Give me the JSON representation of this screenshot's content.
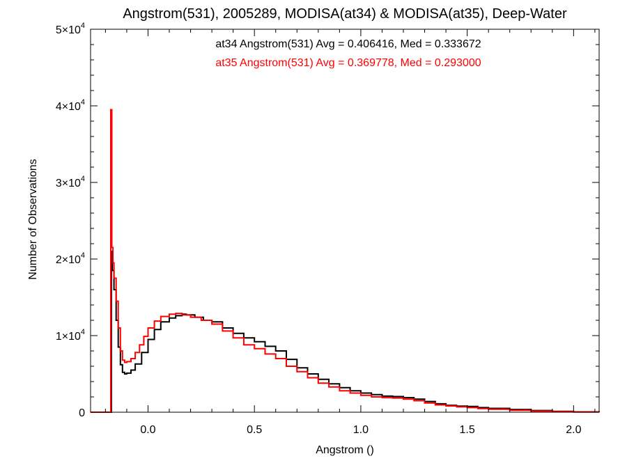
{
  "chart_data": {
    "type": "line",
    "title": "Angstrom(531), 2005289, MODISA(at34) & MODISA(at35), Deep-Water",
    "xlabel": "Angstrom ()",
    "ylabel": "Number of Observations",
    "xlim": [
      -0.27,
      2.12
    ],
    "ylim": [
      0,
      50000
    ],
    "x_ticks": [
      0.0,
      0.5,
      1.0,
      1.5,
      2.0
    ],
    "x_tick_labels": [
      "0.0",
      "0.5",
      "1.0",
      "1.5",
      "2.0"
    ],
    "y_ticks": [
      0,
      10000,
      20000,
      30000,
      40000,
      50000
    ],
    "y_tick_labels": [
      {
        "base": "0",
        "exp": ""
      },
      {
        "base": "1×10",
        "exp": "4"
      },
      {
        "base": "2×10",
        "exp": "4"
      },
      {
        "base": "3×10",
        "exp": "4"
      },
      {
        "base": "4×10",
        "exp": "4"
      },
      {
        "base": "5×10",
        "exp": "4"
      }
    ],
    "grid": false,
    "annotations": [
      {
        "text": "at34 Angstrom(531) Avg = 0.406416, Med = 0.333672",
        "color": "#000000"
      },
      {
        "text": "at35 Angstrom(531) Avg = 0.369778, Med = 0.293000",
        "color": "#ff0000"
      }
    ],
    "series": [
      {
        "color": "#000000",
        "style": "step",
        "x": [
          -0.27,
          -0.18,
          -0.172,
          -0.168,
          -0.16,
          -0.15,
          -0.14,
          -0.13,
          -0.12,
          -0.11,
          -0.1,
          -0.08,
          -0.06,
          -0.03,
          0.0,
          0.03,
          0.06,
          0.1,
          0.13,
          0.16,
          0.18,
          0.22,
          0.26,
          0.3,
          0.35,
          0.4,
          0.45,
          0.5,
          0.55,
          0.6,
          0.65,
          0.7,
          0.75,
          0.8,
          0.85,
          0.9,
          0.95,
          1.0,
          1.05,
          1.1,
          1.15,
          1.2,
          1.25,
          1.3,
          1.35,
          1.4,
          1.45,
          1.5,
          1.55,
          1.6,
          1.7,
          1.8,
          1.9,
          2.0,
          2.12
        ],
        "y": [
          0,
          0,
          21000,
          18500,
          16000,
          12000,
          8500,
          6200,
          5200,
          5000,
          5100,
          5500,
          6300,
          7800,
          9500,
          10800,
          11800,
          12300,
          12600,
          12800,
          12700,
          12400,
          12000,
          11800,
          11000,
          10300,
          9700,
          9200,
          8600,
          8000,
          6900,
          5800,
          5000,
          4300,
          3700,
          3200,
          2800,
          2500,
          2300,
          2100,
          2050,
          1900,
          1700,
          1400,
          1100,
          900,
          800,
          750,
          600,
          500,
          350,
          220,
          120,
          50,
          0
        ]
      },
      {
        "color": "#ff0000",
        "style": "step",
        "x": [
          -0.27,
          -0.18,
          -0.175,
          -0.17,
          -0.165,
          -0.16,
          -0.15,
          -0.14,
          -0.13,
          -0.12,
          -0.11,
          -0.1,
          -0.08,
          -0.06,
          -0.04,
          -0.02,
          0.0,
          0.03,
          0.06,
          0.1,
          0.13,
          0.16,
          0.2,
          0.25,
          0.3,
          0.35,
          0.4,
          0.45,
          0.5,
          0.55,
          0.6,
          0.65,
          0.7,
          0.75,
          0.8,
          0.85,
          0.9,
          0.95,
          1.0,
          1.05,
          1.1,
          1.15,
          1.2,
          1.25,
          1.3,
          1.35,
          1.4,
          1.45,
          1.5,
          1.55,
          1.6,
          1.7,
          1.8,
          1.9,
          2.0,
          2.12
        ],
        "y": [
          0,
          0,
          39500,
          21500,
          19500,
          17500,
          14500,
          11000,
          8000,
          6800,
          6500,
          6600,
          7000,
          7800,
          8800,
          9900,
          11000,
          11900,
          12500,
          12800,
          12900,
          12700,
          12400,
          12000,
          11500,
          10600,
          9700,
          8800,
          8300,
          7600,
          7000,
          6000,
          5300,
          4500,
          3800,
          3300,
          2800,
          2500,
          2200,
          2000,
          1900,
          1850,
          1700,
          1500,
          1200,
          950,
          820,
          700,
          600,
          480,
          380,
          250,
          150,
          80,
          30,
          0
        ]
      }
    ]
  }
}
